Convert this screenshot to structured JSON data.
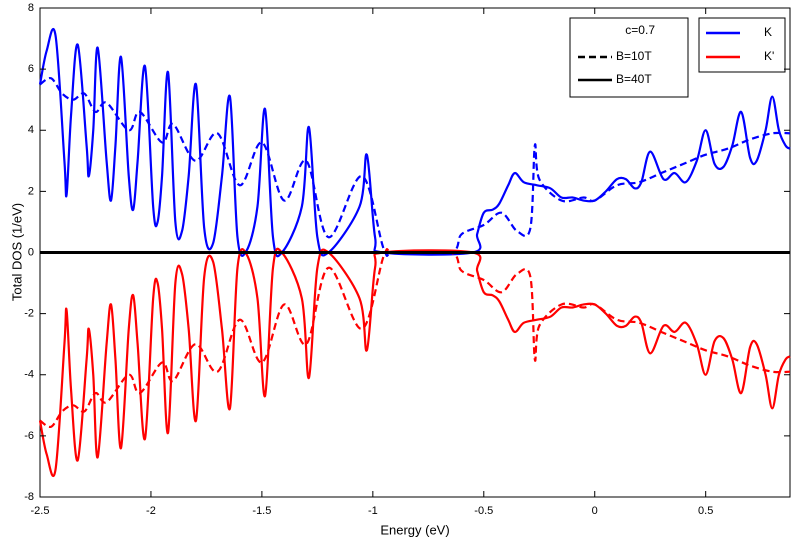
{
  "chart_data": {
    "type": "line",
    "x_label": "Energy (eV)",
    "y_label": "Total DOS (1/eV)",
    "xlim": [
      -2.5,
      0.88
    ],
    "ylim": [
      -8,
      8
    ],
    "xticks": [
      -2.5,
      -2,
      -1.5,
      -1,
      -0.5,
      0,
      0.5
    ],
    "yticks": [
      -8,
      -6,
      -4,
      -2,
      0,
      2,
      4,
      6,
      8
    ],
    "zero_line": true,
    "style_legend": {
      "title": "c=0.7",
      "entries": [
        {
          "label": "B=10T",
          "dash": true,
          "color": "#000000"
        },
        {
          "label": "B=40T",
          "dash": false,
          "color": "#000000"
        }
      ]
    },
    "color_legend": [
      {
        "label": "K",
        "color": "#0000ff"
      },
      {
        "label": "K'",
        "color": "#ff0000"
      }
    ],
    "series": [
      {
        "color": "#0000ff",
        "dash": false,
        "x": [
          -2.5,
          -2.47,
          -2.43,
          -2.39,
          -2.38,
          -2.36,
          -2.33,
          -2.29,
          -2.28,
          -2.26,
          -2.24,
          -2.2,
          -2.18,
          -2.16,
          -2.135,
          -2.1,
          -2.08,
          -2.06,
          -2.027,
          -1.99,
          -1.97,
          -1.95,
          -1.923,
          -1.89,
          -1.86,
          -1.83,
          -1.797,
          -1.76,
          -1.72,
          -1.68,
          -1.644,
          -1.61,
          -1.57,
          -1.52,
          -1.486,
          -1.45,
          -1.41,
          -1.32,
          -1.288,
          -1.25,
          -1.2,
          -1.06,
          -1.027,
          -0.99,
          -0.95,
          -0.55,
          -0.53,
          -0.5,
          -0.46,
          -0.43,
          -0.39,
          -0.36,
          -0.32,
          -0.26,
          -0.2,
          -0.15,
          -0.1,
          -0.05,
          0,
          0.05,
          0.1,
          0.14,
          0.18,
          0.21,
          0.25,
          0.31,
          0.36,
          0.41,
          0.46,
          0.5,
          0.54,
          0.58,
          0.62,
          0.66,
          0.7,
          0.73,
          0.77,
          0.8,
          0.83,
          0.86,
          0.88
        ],
        "values": [
          5.5,
          6.6,
          7.1,
          3.0,
          1.9,
          4.5,
          6.8,
          3.5,
          2.5,
          4.0,
          6.7,
          3.0,
          1.7,
          3.5,
          6.4,
          2.5,
          1.4,
          3.0,
          6.1,
          1.5,
          1.0,
          2.5,
          5.9,
          1.0,
          0.7,
          2.5,
          5.5,
          0.8,
          0.3,
          2.5,
          5.1,
          0.5,
          0.05,
          1.5,
          4.7,
          0.5,
          0,
          1.5,
          4.1,
          0.5,
          0,
          1.5,
          3.2,
          0.5,
          0,
          0,
          0.6,
          1.3,
          1.4,
          1.6,
          2.2,
          2.6,
          2.3,
          2.2,
          2.1,
          1.8,
          1.8,
          1.7,
          1.7,
          2.0,
          2.4,
          2.4,
          2.1,
          2.3,
          3.3,
          2.4,
          2.6,
          2.3,
          3.0,
          4.0,
          2.9,
          2.8,
          3.5,
          4.6,
          3.1,
          3.0,
          4.0,
          5.1,
          4.0,
          3.5,
          3.4
        ]
      },
      {
        "color": "#0000ff",
        "dash": true,
        "x": [
          -2.5,
          -2.45,
          -2.4,
          -2.35,
          -2.3,
          -2.25,
          -2.2,
          -2.1,
          -2.05,
          -1.95,
          -1.9,
          -1.8,
          -1.7,
          -1.6,
          -1.5,
          -1.4,
          -1.3,
          -1.2,
          -1.05,
          -0.95,
          -0.9,
          -0.65,
          -0.6,
          -0.5,
          -0.42,
          -0.35,
          -0.29,
          -0.27,
          -0.25,
          -0.15,
          -0.05,
          0,
          0.1,
          0.2,
          0.3,
          0.4,
          0.5,
          0.6,
          0.7,
          0.8,
          0.88
        ],
        "values": [
          5.5,
          5.7,
          5.2,
          5.0,
          5.2,
          4.6,
          4.9,
          4.0,
          4.6,
          3.6,
          4.2,
          3.0,
          3.9,
          2.2,
          3.6,
          1.7,
          3.0,
          0.5,
          2.5,
          0.1,
          0,
          0,
          0.6,
          0.9,
          1.3,
          0.7,
          0.8,
          3.5,
          2.4,
          1.7,
          1.8,
          1.7,
          2.2,
          2.3,
          2.6,
          2.9,
          3.2,
          3.4,
          3.7,
          3.9,
          3.9
        ]
      },
      {
        "color": "#ff0000",
        "dash": false,
        "x": [
          -2.5,
          -2.47,
          -2.43,
          -2.39,
          -2.38,
          -2.36,
          -2.33,
          -2.29,
          -2.28,
          -2.26,
          -2.24,
          -2.2,
          -2.18,
          -2.16,
          -2.135,
          -2.1,
          -2.08,
          -2.06,
          -2.027,
          -1.99,
          -1.97,
          -1.95,
          -1.923,
          -1.89,
          -1.86,
          -1.83,
          -1.797,
          -1.76,
          -1.72,
          -1.68,
          -1.644,
          -1.61,
          -1.57,
          -1.52,
          -1.486,
          -1.45,
          -1.41,
          -1.32,
          -1.288,
          -1.25,
          -1.2,
          -1.06,
          -1.027,
          -0.99,
          -0.95,
          -0.55,
          -0.53,
          -0.5,
          -0.46,
          -0.43,
          -0.39,
          -0.36,
          -0.32,
          -0.26,
          -0.2,
          -0.15,
          -0.1,
          -0.05,
          0,
          0.05,
          0.1,
          0.14,
          0.18,
          0.21,
          0.25,
          0.31,
          0.36,
          0.41,
          0.46,
          0.5,
          0.54,
          0.58,
          0.62,
          0.66,
          0.7,
          0.73,
          0.77,
          0.8,
          0.83,
          0.86,
          0.88
        ],
        "values": [
          -5.5,
          -6.6,
          -7.1,
          -3.0,
          -1.9,
          -4.5,
          -6.8,
          -3.5,
          -2.5,
          -4.0,
          -6.7,
          -3.0,
          -1.7,
          -3.5,
          -6.4,
          -2.5,
          -1.4,
          -3.0,
          -6.1,
          -1.5,
          -1.0,
          -2.5,
          -5.9,
          -1.0,
          -0.7,
          -2.5,
          -5.5,
          -0.8,
          -0.3,
          -2.5,
          -5.1,
          -0.5,
          -0.05,
          -1.5,
          -4.7,
          -0.5,
          0,
          -1.5,
          -4.1,
          -0.5,
          0,
          -1.5,
          -3.2,
          -0.5,
          0,
          0,
          -0.6,
          -1.3,
          -1.4,
          -1.6,
          -2.2,
          -2.6,
          -2.3,
          -2.2,
          -2.1,
          -1.8,
          -1.8,
          -1.7,
          -1.7,
          -2.0,
          -2.4,
          -2.4,
          -2.1,
          -2.3,
          -3.3,
          -2.4,
          -2.6,
          -2.3,
          -3.0,
          -4.0,
          -2.9,
          -2.8,
          -3.5,
          -4.6,
          -3.1,
          -3.0,
          -4.0,
          -5.1,
          -4.0,
          -3.5,
          -3.4
        ]
      },
      {
        "color": "#ff0000",
        "dash": true,
        "x": [
          -2.5,
          -2.45,
          -2.4,
          -2.35,
          -2.3,
          -2.25,
          -2.2,
          -2.1,
          -2.05,
          -1.95,
          -1.9,
          -1.8,
          -1.7,
          -1.6,
          -1.5,
          -1.4,
          -1.3,
          -1.2,
          -1.05,
          -0.95,
          -0.9,
          -0.65,
          -0.6,
          -0.5,
          -0.42,
          -0.35,
          -0.29,
          -0.27,
          -0.25,
          -0.15,
          -0.05,
          0,
          0.1,
          0.2,
          0.3,
          0.4,
          0.5,
          0.6,
          0.7,
          0.8,
          0.88
        ],
        "values": [
          -5.5,
          -5.7,
          -5.2,
          -5.0,
          -5.2,
          -4.6,
          -4.9,
          -4.0,
          -4.6,
          -3.6,
          -4.2,
          -3.0,
          -3.9,
          -2.2,
          -3.6,
          -1.7,
          -3.0,
          -0.5,
          -2.5,
          -0.1,
          0,
          0,
          -0.6,
          -0.9,
          -1.3,
          -0.7,
          -0.8,
          -3.5,
          -2.4,
          -1.7,
          -1.8,
          -1.7,
          -2.2,
          -2.3,
          -2.6,
          -2.9,
          -3.2,
          -3.4,
          -3.7,
          -3.9,
          -3.9
        ]
      }
    ]
  }
}
